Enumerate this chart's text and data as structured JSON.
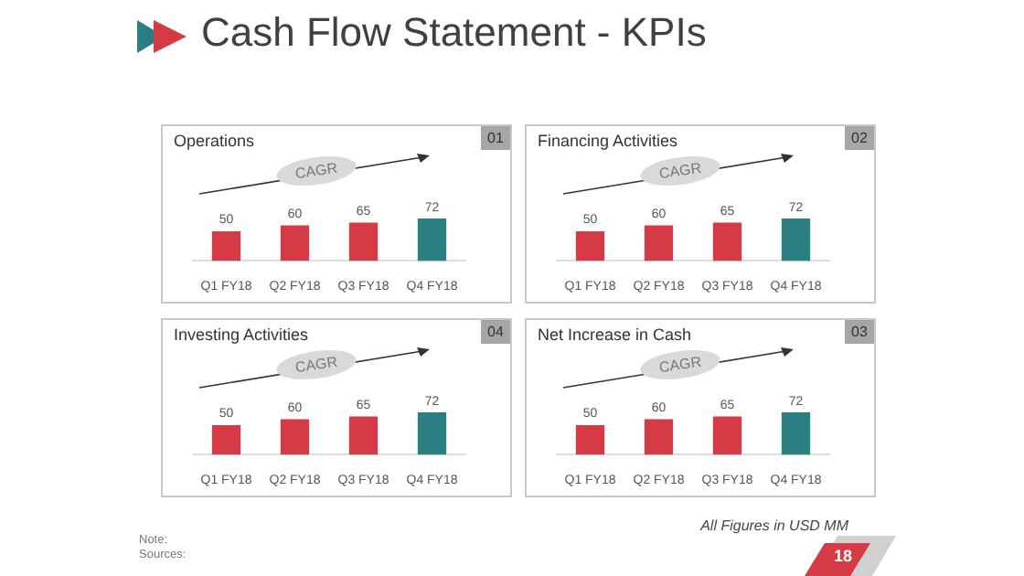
{
  "chart_data": [
    {
      "type": "bar",
      "title": "Operations",
      "categories": [
        "Q1 FY18",
        "Q2 FY18",
        "Q3 FY18",
        "Q4 FY18"
      ],
      "values": [
        50,
        60,
        65,
        72
      ],
      "colors": [
        "#d63a44",
        "#d63a44",
        "#d63a44",
        "#2b7e82"
      ],
      "data_labels": true,
      "tick_labels": "x",
      "annotations": [
        "01",
        "CAGR",
        "Cash Flow Statement - KPIs"
      ]
    },
    {
      "type": "bar",
      "title": "Financing Activities",
      "categories": [
        "Q1 FY18",
        "Q2 FY18",
        "Q3 FY18",
        "Q4 FY18"
      ],
      "values": [
        50,
        60,
        65,
        72
      ],
      "colors": [
        "#d63a44",
        "#d63a44",
        "#d63a44",
        "#2b7e82"
      ],
      "data_labels": true,
      "tick_labels": "x",
      "annotations": [
        "02",
        "CAGR"
      ]
    },
    {
      "type": "bar",
      "title": "Investing Activities",
      "categories": [
        "Q1 FY18",
        "Q2 FY18",
        "Q3 FY18",
        "Q4 FY18"
      ],
      "values": [
        50,
        60,
        65,
        72
      ],
      "colors": [
        "#d63a44",
        "#d63a44",
        "#d63a44",
        "#2b7e82"
      ],
      "data_labels": true,
      "tick_labels": "x",
      "annotations": [
        "04",
        "CAGR"
      ]
    },
    {
      "type": "bar",
      "title": "Net Increase in Cash",
      "categories": [
        "Q1 FY18",
        "Q2 FY18",
        "Q3 FY18",
        "Q4 FY18"
      ],
      "values": [
        50,
        60,
        65,
        72
      ],
      "colors": [
        "#d63a44",
        "#d63a44",
        "#d63a44",
        "#2b7e82"
      ],
      "data_labels": true,
      "tick_labels": "x",
      "annotations": [
        "03",
        "CAGR",
        "All Figures in USD MM",
        "Note:",
        "Sources:",
        "18"
      ]
    }
  ]
}
